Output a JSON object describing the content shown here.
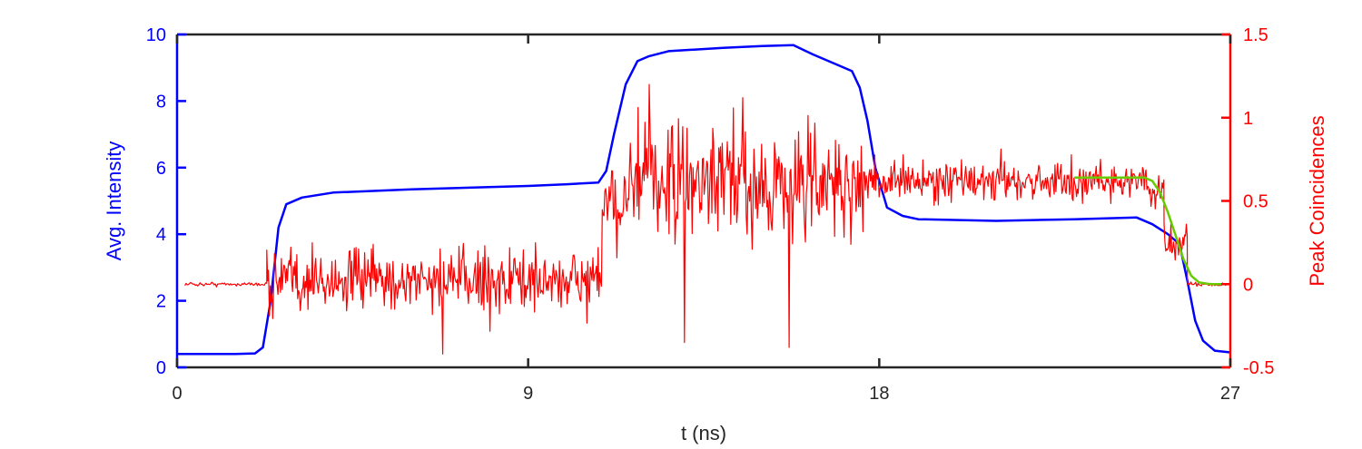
{
  "chart_data": {
    "type": "line",
    "xlabel": "t (ns)",
    "x_ticks": [
      "0",
      "9",
      "18",
      "27"
    ],
    "xlim": [
      0,
      27
    ],
    "left_axis": {
      "label": "Avg. Intensity",
      "color": "#0000ff",
      "ylim": [
        0,
        10
      ],
      "ticks": [
        "0",
        "2",
        "4",
        "6",
        "8",
        "10"
      ]
    },
    "right_axis": {
      "label": "Peak Coincidences",
      "color": "#ff0000",
      "ylim": [
        -0.5,
        1.5
      ],
      "ticks": [
        "-0.5",
        "0",
        "0.5",
        "1",
        "1.5"
      ]
    },
    "series": [
      {
        "axis": "left",
        "color": "#0000ff",
        "x": [
          0,
          1.5,
          2.0,
          2.2,
          2.4,
          2.6,
          2.8,
          3.2,
          4.0,
          6.0,
          9.0,
          10.0,
          10.8,
          11.0,
          11.2,
          11.5,
          11.8,
          12.1,
          12.6,
          14.0,
          15.0,
          15.8,
          16.3,
          16.9,
          17.3,
          17.5,
          17.7,
          17.9,
          18.2,
          18.6,
          19.0,
          21.0,
          23.0,
          24.6,
          25.0,
          25.4,
          25.7,
          25.9,
          26.1,
          26.3,
          26.6,
          27.0
        ],
        "y": [
          0.4,
          0.4,
          0.42,
          0.6,
          2.0,
          4.2,
          4.9,
          5.1,
          5.25,
          5.35,
          5.45,
          5.5,
          5.55,
          5.9,
          7.0,
          8.5,
          9.2,
          9.35,
          9.5,
          9.6,
          9.65,
          9.68,
          9.4,
          9.1,
          8.9,
          8.4,
          7.4,
          6.0,
          4.8,
          4.55,
          4.45,
          4.4,
          4.45,
          4.5,
          4.3,
          4.0,
          3.7,
          2.6,
          1.4,
          0.8,
          0.5,
          0.45
        ]
      },
      {
        "axis": "right",
        "color": "#ff0000",
        "note": "noisy peak-coincidence trace",
        "segments": [
          {
            "x_start": 0.2,
            "x_end": 2.3,
            "mean": 0.0,
            "noise": 0.01
          },
          {
            "x_start": 2.3,
            "x_end": 10.9,
            "mean": 0.02,
            "noise": 0.16
          },
          {
            "x_start": 10.9,
            "x_end": 11.4,
            "mean": 0.45,
            "noise": 0.18
          },
          {
            "x_start": 11.4,
            "x_end": 17.6,
            "mean": 0.6,
            "noise": 0.28
          },
          {
            "x_start": 17.6,
            "x_end": 24.9,
            "mean": 0.62,
            "noise": 0.1
          },
          {
            "x_start": 24.9,
            "x_end": 25.3,
            "mean": 0.55,
            "noise": 0.08
          },
          {
            "x_start": 25.3,
            "x_end": 25.9,
            "mean": 0.25,
            "noise": 0.1
          },
          {
            "x_start": 25.9,
            "x_end": 26.9,
            "mean": 0.0,
            "noise": 0.01
          }
        ],
        "extremes": [
          {
            "x": 12.1,
            "y": 1.2
          },
          {
            "x": 15.7,
            "y": -0.38
          },
          {
            "x": 6.8,
            "y": -0.42
          },
          {
            "x": 14.5,
            "y": 1.12
          },
          {
            "x": 13.0,
            "y": -0.35
          }
        ]
      },
      {
        "axis": "right",
        "color": "#66cc00",
        "x": [
          23.0,
          24.0,
          24.8,
          25.0,
          25.2,
          25.4,
          25.6,
          25.8,
          26.0,
          26.2,
          26.5,
          26.9
        ],
        "y": [
          0.64,
          0.64,
          0.64,
          0.62,
          0.55,
          0.43,
          0.29,
          0.15,
          0.05,
          0.01,
          0.0,
          0.0
        ]
      }
    ]
  }
}
